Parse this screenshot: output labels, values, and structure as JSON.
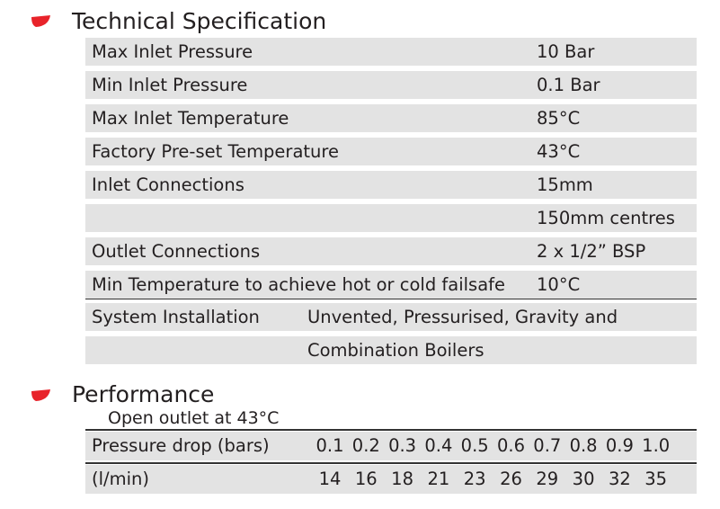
{
  "spec": {
    "title": "Technical Specification",
    "rows": [
      {
        "label": "Max Inlet Pressure",
        "value": "10 Bar"
      },
      {
        "label": "Min Inlet Pressure",
        "value": "0.1 Bar"
      },
      {
        "label": "Max Inlet Temperature",
        "value": "85°C"
      },
      {
        "label": "Factory Pre-set Temperature",
        "value": "43°C"
      },
      {
        "label": "Inlet Connections",
        "value": "15mm"
      },
      {
        "value": "150mm centres"
      },
      {
        "label": "Outlet Connections",
        "value": "2 x 1/2” BSP"
      },
      {
        "label": "Min Temperature to achieve hot or cold failsafe",
        "value": "10°C"
      }
    ],
    "install": [
      {
        "label": "System Installation",
        "value": "Unvented, Pressurised, Gravity and"
      },
      {
        "value": "Combination Boilers"
      }
    ]
  },
  "performance": {
    "title": "Performance",
    "subtitle": "Open outlet at 43°C",
    "rows": [
      {
        "label": "Pressure drop (bars)",
        "cells": [
          "0.1",
          "0.2",
          "0.3",
          "0.4",
          "0.5",
          "0.6",
          "0.7",
          "0.8",
          "0.9",
          "1.0"
        ]
      },
      {
        "label": "(l/min)",
        "cells": [
          "14",
          "16",
          "18",
          "21",
          "23",
          "26",
          "29",
          "30",
          "32",
          "35"
        ]
      }
    ]
  }
}
